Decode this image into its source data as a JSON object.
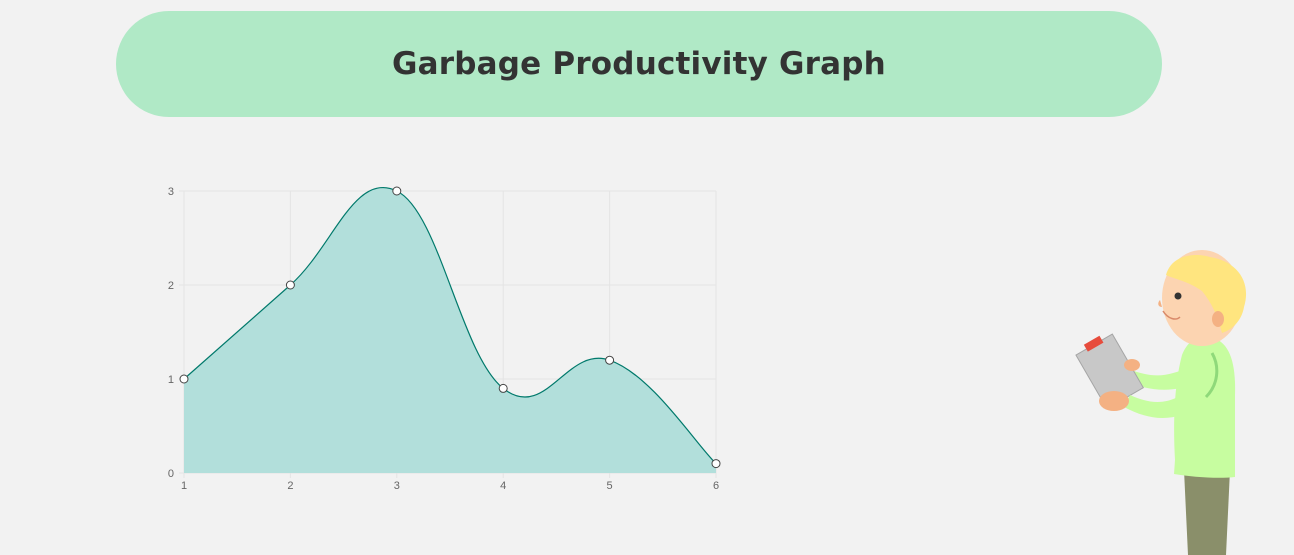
{
  "header": {
    "title": "Garbage Productivity Graph"
  },
  "chart_data": {
    "type": "area",
    "title": "",
    "xlabel": "",
    "ylabel": "",
    "x": [
      1,
      2,
      3,
      4,
      5,
      6
    ],
    "series": [
      {
        "values": [
          1,
          2,
          3,
          0.9,
          1.2,
          0.1
        ]
      }
    ],
    "x_ticks": [
      "1",
      "2",
      "3",
      "4",
      "5",
      "6"
    ],
    "y_ticks": [
      "0",
      "1",
      "2",
      "3"
    ],
    "xlim": [
      1,
      6
    ],
    "ylim": [
      0,
      3
    ],
    "grid": true,
    "legend": "none",
    "colors": {
      "fill": "#b2dfdb",
      "line": "#00796b",
      "point_fill": "#ffffff"
    }
  },
  "illustration": {
    "name": "man-with-clipboard"
  }
}
